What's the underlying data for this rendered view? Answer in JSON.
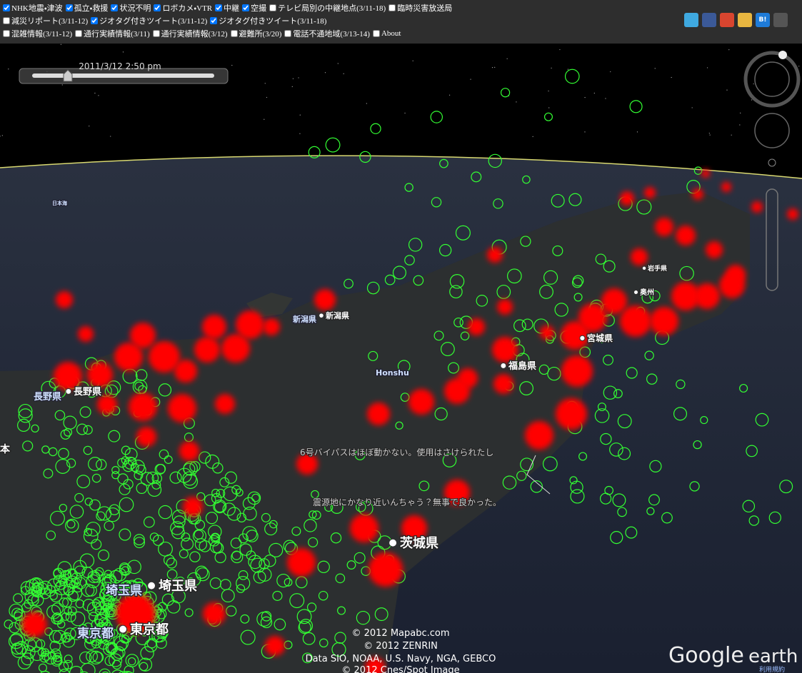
{
  "toolbar": {
    "rows": [
      [
        {
          "label": "NHK地震・津波",
          "checked": true
        },
        {
          "label": "孤立・救援",
          "checked": true
        },
        {
          "label": "状況不明",
          "checked": true
        },
        {
          "label": "ロボカメ・VTR",
          "checked": true
        },
        {
          "label": "中継",
          "checked": true
        },
        {
          "label": "空撮",
          "checked": true
        },
        {
          "label": "テレビ局別の中継地点(3/11-18)",
          "checked": false
        },
        {
          "label": "臨時災害放送局",
          "checked": false
        }
      ],
      [
        {
          "label": "減災リポート(3/11-12)",
          "checked": false
        },
        {
          "label": "ジオタグ付きツイート(3/11-12)",
          "checked": true
        },
        {
          "label": "ジオタグ付きツイート(3/11-18)",
          "checked": true
        }
      ],
      [
        {
          "label": "混雑情報(3/11-12)",
          "checked": false
        },
        {
          "label": "通行実績情報(3/11)",
          "checked": false
        },
        {
          "label": "通行実績情報(3/12)",
          "checked": false
        },
        {
          "label": "避難所(3/20)",
          "checked": false
        },
        {
          "label": "電話不通地域(3/13-14)",
          "checked": false
        },
        {
          "label": "About",
          "checked": false
        }
      ]
    ],
    "hatena": "B!"
  },
  "timeline": {
    "date": "2011/3/12   2:50 pm"
  },
  "map": {
    "labels": [
      "新潟県",
      "新潟県",
      "長野県",
      "長野県",
      "福島県",
      "宮城県",
      "岩手県",
      "奥州",
      "茨城県",
      "埼玉県",
      "埼玉県",
      "東京都",
      "東京都",
      "Honshu",
      "日本海",
      "本"
    ],
    "tweets": [
      "6号バイパスはほぼ動かない。使用はさけられたし",
      "震源地にかなり近いんちゃう？無事で良かった。"
    ],
    "attribution": [
      "© 2012 Mapabc.com",
      "© 2012 ZENRIN",
      "Data SIO, NOAA, U.S. Navy, NGA, GEBCO",
      "© 2012 Cnes/Spot Image"
    ],
    "logo": [
      "Google",
      "earth"
    ],
    "terms": "利用規約"
  }
}
